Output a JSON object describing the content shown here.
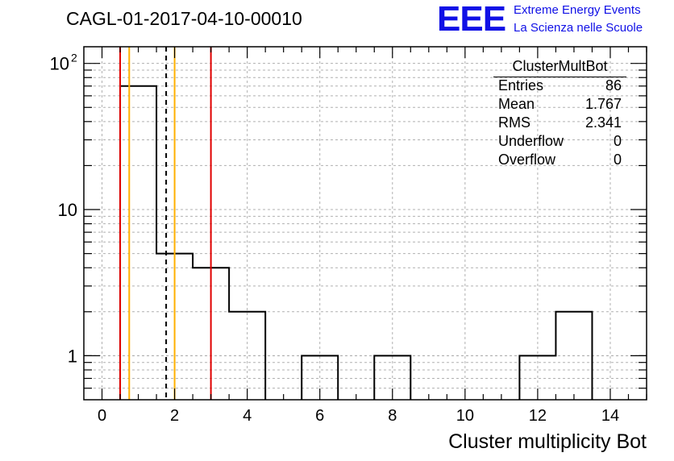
{
  "title": "CAGL-01-2017-04-10-00010",
  "logo": {
    "mark": "EEE",
    "line1": "Extreme Energy Events",
    "line2": "La Scienza nelle Scuole"
  },
  "stats_box": {
    "title": "ClusterMultBot",
    "rows": [
      {
        "label": "Entries",
        "value": "86"
      },
      {
        "label": "Mean",
        "value": "1.767"
      },
      {
        "label": "RMS",
        "value": "2.341"
      },
      {
        "label": "Underflow",
        "value": "0"
      },
      {
        "label": "Overflow",
        "value": "0"
      }
    ]
  },
  "colors": {
    "histogram": "#000000",
    "red_lines": "#e00000",
    "orange_lines": "#ffb000",
    "grid": "#b0b0b0",
    "logo": "#1010e6"
  },
  "chart_data": {
    "type": "bar",
    "style": "step-histogram",
    "title": "CAGL-01-2017-04-10-00010",
    "xlabel": "Cluster multiplicity Bot",
    "ylabel": "",
    "xlim": [
      -0.5,
      15.0
    ],
    "ylim": [
      0.5,
      130
    ],
    "yscale": "log",
    "grid": true,
    "x_ticks": [
      "0",
      "2",
      "4",
      "6",
      "8",
      "10",
      "12",
      "14"
    ],
    "y_ticks": [
      {
        "value": 1,
        "label": "1"
      },
      {
        "value": 10,
        "label": "10"
      },
      {
        "value": 100,
        "label": "10",
        "sup": "2"
      }
    ],
    "bins": [
      {
        "low": 0.5,
        "high": 1.5,
        "count": 70
      },
      {
        "low": 1.5,
        "high": 2.5,
        "count": 5
      },
      {
        "low": 2.5,
        "high": 3.5,
        "count": 4
      },
      {
        "low": 3.5,
        "high": 4.5,
        "count": 2
      },
      {
        "low": 5.5,
        "high": 6.5,
        "count": 1
      },
      {
        "low": 7.5,
        "high": 8.5,
        "count": 1
      },
      {
        "low": 11.5,
        "high": 12.5,
        "count": 1
      },
      {
        "low": 12.5,
        "high": 13.5,
        "count": 2
      }
    ],
    "vertical_lines": [
      {
        "x": 0.5,
        "color": "#e00000",
        "style": "solid"
      },
      {
        "x": 3.0,
        "color": "#e00000",
        "style": "solid"
      },
      {
        "x": 0.75,
        "color": "#ffb000",
        "style": "solid"
      },
      {
        "x": 2.0,
        "color": "#ffb000",
        "style": "solid"
      },
      {
        "x": 1.767,
        "color": "#000000",
        "style": "dashed"
      }
    ]
  }
}
